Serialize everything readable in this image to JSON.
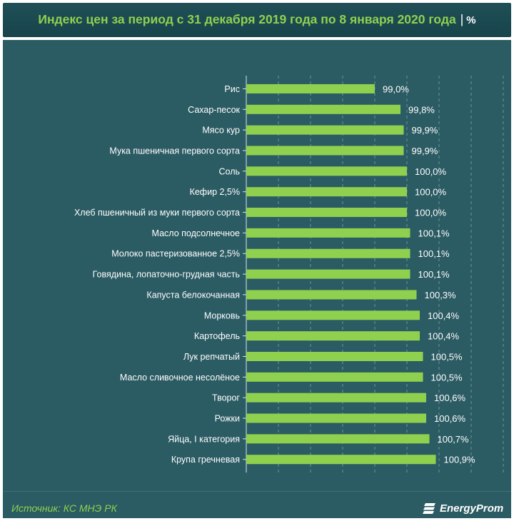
{
  "header": {
    "title": "Индекс цен за период с 31 декабря 2019 года по 8 января 2020 года",
    "unit": "%"
  },
  "footer": {
    "source": "Источник: КС МНЭ РК",
    "logo_text": "EnergyProm"
  },
  "colors": {
    "bar": "#8fd14f",
    "background": "#2b5b63",
    "header": "#1f4f57",
    "text": "#ffffff",
    "accent": "#8fd14f"
  },
  "chart_data": {
    "type": "bar",
    "orientation": "horizontal",
    "title": "Индекс цен за период с 31 декабря 2019 года по 8 января 2020 года",
    "unit": "%",
    "grid": true,
    "categories": [
      "Рис",
      "Сахар-песок",
      "Мясо кур",
      "Мука пшеничная первого сорта",
      "Соль",
      "Кефир 2,5%",
      "Хлеб пшеничный из муки первого сорта",
      "Масло подсолнечное",
      "Молоко пастеризованное 2,5%",
      "Говядина, лопаточно-грудная часть",
      "Капуста белокочанная",
      "Морковь",
      "Картофель",
      "Лук репчатый",
      "Масло сливочное несолёное",
      "Творог",
      "Рожки",
      "Яйца, I категория",
      "Крупа гречневая"
    ],
    "values": [
      99.0,
      99.8,
      99.9,
      99.9,
      100.0,
      100.0,
      100.0,
      100.1,
      100.1,
      100.1,
      100.3,
      100.4,
      100.4,
      100.5,
      100.5,
      100.6,
      100.6,
      100.7,
      100.9
    ],
    "labels": [
      "99,0%",
      "99,8%",
      "99,9%",
      "99,9%",
      "100,0%",
      "100,0%",
      "100,0%",
      "100,1%",
      "100,1%",
      "100,1%",
      "100,3%",
      "100,4%",
      "100,4%",
      "100,5%",
      "100,5%",
      "100,6%",
      "100,6%",
      "100,7%",
      "100,9%"
    ],
    "xlim": [
      95.0,
      103.0
    ]
  }
}
